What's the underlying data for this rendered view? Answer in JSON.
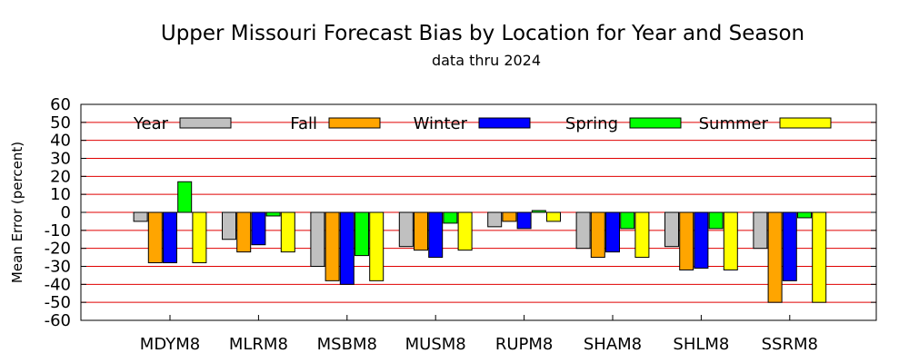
{
  "chart_data": {
    "type": "bar",
    "title": "Upper Missouri Forecast Bias by Location for Year and Season",
    "subtitle": "data thru 2024",
    "xlabel": "",
    "ylabel": "Mean Error (percent)",
    "ylim": [
      -60,
      60
    ],
    "yticks": [
      -60,
      -50,
      -40,
      -30,
      -20,
      -10,
      0,
      10,
      20,
      30,
      40,
      50,
      60
    ],
    "grid": "horizontal",
    "legend_position": "top",
    "categories": [
      "MDYM8",
      "MLRM8",
      "MSBM8",
      "MUSM8",
      "RUPM8",
      "SHAM8",
      "SHLM8",
      "SSRM8"
    ],
    "series": [
      {
        "name": "Year",
        "color": "#c0c0c0",
        "values": [
          -5,
          -15,
          -30,
          -19,
          -8,
          -20,
          -19,
          -20
        ]
      },
      {
        "name": "Fall",
        "color": "#ffa500",
        "values": [
          -28,
          -22,
          -38,
          -21,
          -5,
          -25,
          -32,
          -50
        ]
      },
      {
        "name": "Winter",
        "color": "#0000ff",
        "values": [
          -28,
          -18,
          -40,
          -25,
          -9,
          -22,
          -31,
          -38
        ]
      },
      {
        "name": "Spring",
        "color": "#00ff00",
        "values": [
          17,
          -2,
          -24,
          -6,
          1,
          -9,
          -9,
          -3
        ]
      },
      {
        "name": "Summer",
        "color": "#ffff00",
        "values": [
          -28,
          -22,
          -38,
          -21,
          -5,
          -25,
          -32,
          -50
        ]
      }
    ]
  }
}
